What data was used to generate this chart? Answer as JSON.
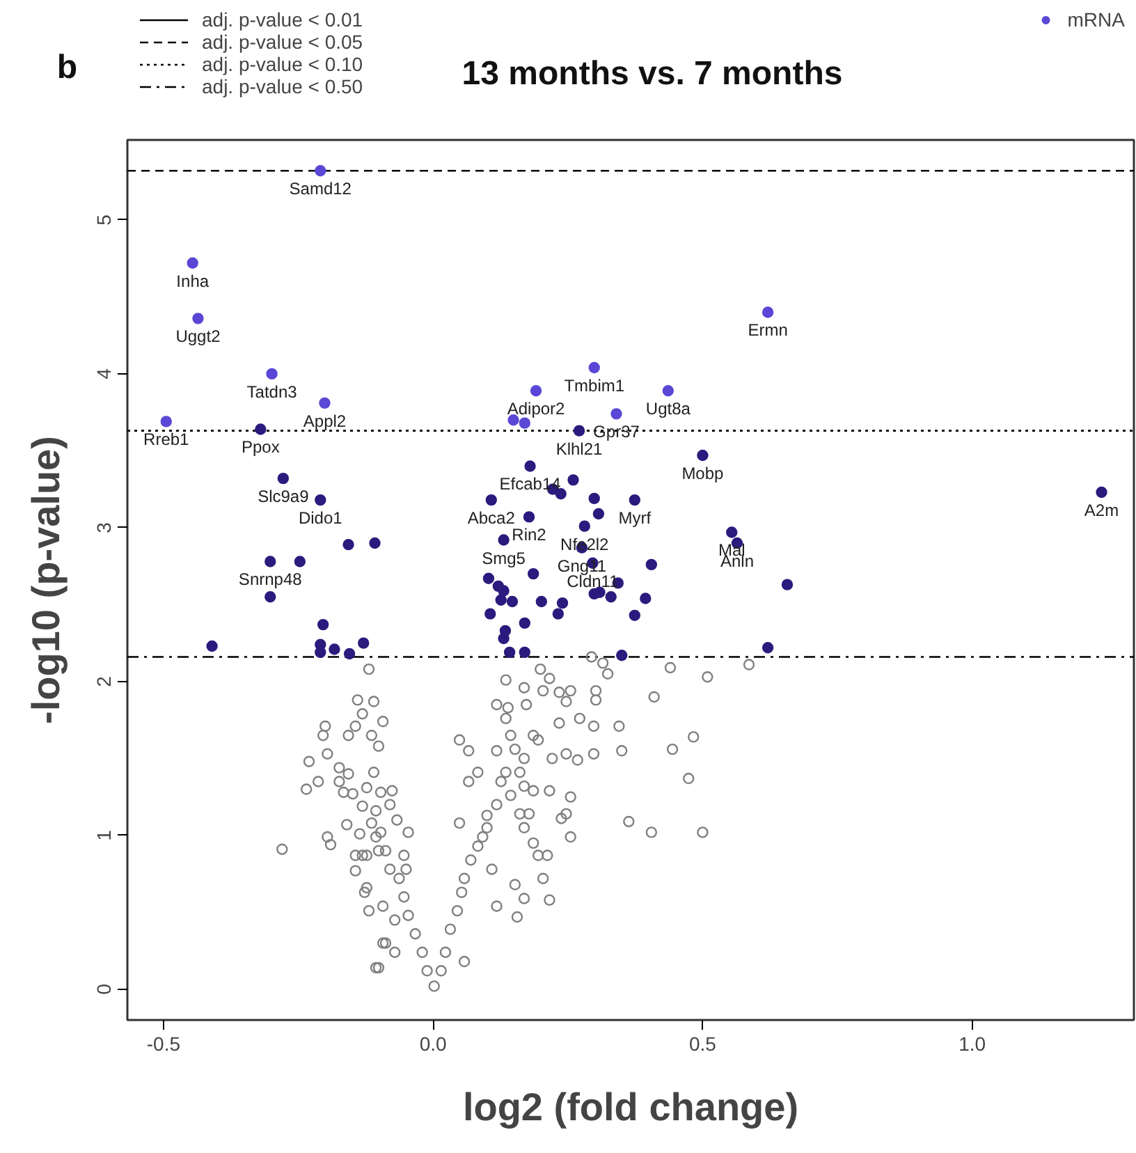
{
  "chart_data": {
    "type": "scatter",
    "title": "13 months vs. 7 months",
    "xlabel": "log2 (fold change)",
    "ylabel": "-log10 (p-value)",
    "xlim": [
      -0.567,
      1.3
    ],
    "ylim": [
      -0.2,
      5.52
    ],
    "xticks": [
      {
        "value": -0.5,
        "label": "-0.5"
      },
      {
        "value": 0,
        "label": "0.0"
      },
      {
        "value": 0.5,
        "label": "0.5"
      },
      {
        "value": 1.0,
        "label": "1.0"
      }
    ],
    "yticks": [
      0,
      1,
      2,
      3,
      4,
      5
    ],
    "grid": false,
    "marker": "circle",
    "legend": "top right",
    "series": [
      {
        "name": "mRNA",
        "color": "#5b47d6",
        "x": [
          -0.209,
          -0.446,
          -0.436,
          -0.299,
          -0.201,
          -0.495,
          0.191,
          0.299,
          0.436,
          0.34,
          0.149,
          0.17,
          0.621
        ],
        "values": [
          5.32,
          4.72,
          4.36,
          4.0,
          3.81,
          3.69,
          3.89,
          4.04,
          3.89,
          3.74,
          3.7,
          3.68,
          4.4
        ]
      },
      {
        "color": "#2b1b7e",
        "x": [
          -0.32,
          0.271,
          0.5,
          1.24,
          0.554,
          0.564,
          0.657,
          0.621,
          -0.278,
          -0.209,
          -0.157,
          -0.108,
          -0.302,
          -0.247,
          -0.302,
          -0.204,
          -0.41,
          -0.209,
          -0.209,
          -0.183,
          -0.155,
          -0.129,
          0.18,
          0.108,
          0.26,
          0.222,
          0.237,
          0.299,
          0.374,
          0.178,
          0.307,
          0.281,
          0.131,
          0.276,
          0.296,
          0.405,
          0.186,
          0.103,
          0.343,
          0.299,
          0.309,
          0.33,
          0.121,
          0.131,
          0.147,
          0.126,
          0.201,
          0.24,
          0.394,
          0.106,
          0.17,
          0.232,
          0.374,
          0.134,
          0.131,
          0.142,
          0.17,
          0.35
        ],
        "values": [
          3.64,
          3.63,
          3.47,
          3.23,
          2.97,
          2.9,
          2.63,
          2.22,
          3.32,
          3.18,
          2.89,
          2.9,
          2.78,
          2.78,
          2.55,
          2.37,
          2.23,
          2.24,
          2.19,
          2.21,
          2.18,
          2.25,
          3.4,
          3.18,
          3.31,
          3.25,
          3.22,
          3.19,
          3.18,
          3.07,
          3.09,
          3.01,
          2.92,
          2.87,
          2.77,
          2.76,
          2.7,
          2.67,
          2.64,
          2.57,
          2.58,
          2.55,
          2.62,
          2.59,
          2.52,
          2.53,
          2.52,
          2.51,
          2.54,
          2.44,
          2.38,
          2.44,
          2.43,
          2.33,
          2.28,
          2.19,
          2.19,
          2.17
        ]
      },
      {
        "color": "#808080",
        "x": [
          0.002,
          -0.011,
          0.015,
          -0.02,
          0.023,
          -0.033,
          0.032,
          -0.046,
          0.045,
          -0.054,
          0.053,
          -0.063,
          0.058,
          -0.08,
          0.07,
          -0.088,
          0.083,
          -0.106,
          0.092,
          -0.114,
          0.049,
          0.1,
          -0.131,
          0.109,
          -0.123,
          0.118,
          -0.088,
          -0.071,
          -0.101,
          0.058,
          0.156,
          0.216,
          0.204,
          0.169,
          0.152,
          0.195,
          0.212,
          0.186,
          0.169,
          0.178,
          0.161,
          0.1,
          0.118,
          0.144,
          0.169,
          0.186,
          0.216,
          0.255,
          0.247,
          0.255,
          0.238,
          0.186,
          0.195,
          0.144,
          0.152,
          0.118,
          0.066,
          0.049,
          0.083,
          0.066,
          0.126,
          0.135,
          0.161,
          0.169,
          0.221,
          0.247,
          0.268,
          0.272,
          0.234,
          0.247,
          0.234,
          0.255,
          0.204,
          0.216,
          0.199,
          0.169,
          0.173,
          0.135,
          0.118,
          0.139,
          0.135,
          0.302,
          0.302,
          0.324,
          0.315,
          0.294,
          0.298,
          0.298,
          0.345,
          0.35,
          0.41,
          0.44,
          0.509,
          0.586,
          0.483,
          0.444,
          0.474,
          0.363,
          0.405,
          0.5,
          -0.119,
          -0.14,
          -0.11,
          -0.131,
          -0.093,
          -0.2,
          -0.144,
          -0.157,
          -0.204,
          -0.114,
          -0.101,
          -0.196,
          -0.23,
          -0.174,
          -0.157,
          -0.213,
          -0.174,
          -0.235,
          -0.11,
          -0.123,
          -0.166,
          -0.149,
          -0.097,
          -0.076,
          -0.131,
          -0.106,
          -0.08,
          -0.067,
          -0.16,
          -0.136,
          -0.097,
          -0.046,
          -0.196,
          -0.19,
          -0.144,
          -0.123,
          -0.101,
          -0.054,
          -0.28,
          -0.144,
          -0.05,
          -0.127,
          -0.119,
          -0.093,
          -0.071,
          -0.106,
          -0.093
        ],
        "values": [
          0.02,
          0.12,
          0.12,
          0.24,
          0.24,
          0.36,
          0.39,
          0.48,
          0.51,
          0.6,
          0.63,
          0.72,
          0.72,
          0.78,
          0.84,
          0.9,
          0.93,
          0.99,
          0.99,
          1.08,
          1.08,
          1.05,
          0.87,
          0.78,
          0.66,
          0.54,
          0.3,
          0.24,
          0.14,
          0.18,
          0.47,
          0.58,
          0.72,
          0.59,
          0.68,
          0.87,
          0.87,
          0.95,
          1.05,
          1.14,
          1.14,
          1.13,
          1.2,
          1.26,
          1.32,
          1.29,
          1.29,
          1.25,
          1.14,
          0.99,
          1.11,
          1.65,
          1.62,
          1.65,
          1.56,
          1.55,
          1.55,
          1.62,
          1.41,
          1.35,
          1.35,
          1.41,
          1.41,
          1.5,
          1.5,
          1.53,
          1.49,
          1.76,
          1.73,
          1.87,
          1.93,
          1.94,
          1.94,
          2.02,
          2.08,
          1.96,
          1.85,
          2.01,
          1.85,
          1.83,
          1.76,
          1.94,
          1.88,
          2.05,
          2.12,
          2.16,
          1.71,
          1.53,
          1.71,
          1.55,
          1.9,
          2.09,
          2.03,
          2.11,
          1.64,
          1.56,
          1.37,
          1.09,
          1.02,
          1.02,
          2.08,
          1.88,
          1.87,
          1.79,
          1.74,
          1.71,
          1.71,
          1.65,
          1.65,
          1.65,
          1.58,
          1.53,
          1.48,
          1.44,
          1.4,
          1.35,
          1.35,
          1.3,
          1.41,
          1.31,
          1.28,
          1.27,
          1.28,
          1.29,
          1.19,
          1.16,
          1.2,
          1.1,
          1.07,
          1.01,
          1.02,
          1.02,
          0.99,
          0.94,
          0.87,
          0.87,
          0.9,
          0.87,
          0.91,
          0.77,
          0.78,
          0.63,
          0.51,
          0.54,
          0.45,
          0.14,
          0.3
        ]
      }
    ],
    "ref_lines": [
      {
        "axis": "y",
        "value": null,
        "label": "adj. p-value < 0.01",
        "line_style": "solid",
        "color": "#000000"
      },
      {
        "axis": "y",
        "value": 5.32,
        "label": "adj. p-value < 0.05",
        "line_style": "dashed",
        "color": "#000000"
      },
      {
        "axis": "y",
        "value": 3.63,
        "label": "adj. p-value < 0.10",
        "line_style": "dotted",
        "color": "#000000"
      },
      {
        "axis": "y",
        "value": 2.16,
        "label": "adj. p-value < 0.50",
        "line_style": "dashdot",
        "color": "#000000"
      }
    ],
    "annotations": [
      "b",
      {
        "text": "Samd12",
        "x": -0.209,
        "y": 5.32
      },
      {
        "text": "Inha",
        "x": -0.446,
        "y": 4.72
      },
      {
        "text": "Uggt2",
        "x": -0.436,
        "y": 4.36
      },
      {
        "text": "Tatdn3",
        "x": -0.299,
        "y": 4.0
      },
      {
        "text": "Appl2",
        "x": -0.201,
        "y": 3.81
      },
      {
        "text": "Rreb1",
        "x": -0.495,
        "y": 3.69
      },
      {
        "text": "Ppox",
        "x": -0.32,
        "y": 3.64
      },
      {
        "text": "Adipor2",
        "x": 0.191,
        "y": 3.89
      },
      {
        "text": "Tmbim1",
        "x": 0.299,
        "y": 4.04
      },
      {
        "text": "Ugt8a",
        "x": 0.436,
        "y": 3.89
      },
      {
        "text": "Gpr37",
        "x": 0.34,
        "y": 3.74
      },
      {
        "text": "Klhl21",
        "x": 0.271,
        "y": 3.63
      },
      {
        "text": "Ermn",
        "x": 0.621,
        "y": 4.4
      },
      {
        "text": "Mobp",
        "x": 0.5,
        "y": 3.47
      },
      {
        "text": "A2m",
        "x": 1.24,
        "y": 3.23
      },
      {
        "text": "Mal",
        "x": 0.554,
        "y": 2.97
      },
      {
        "text": "Anln",
        "x": 0.564,
        "y": 2.9
      },
      {
        "text": "Slc9a9",
        "x": -0.278,
        "y": 3.32
      },
      {
        "text": "Dido1",
        "x": -0.209,
        "y": 3.18
      },
      {
        "text": "Snrnp48",
        "x": -0.302,
        "y": 2.78
      },
      {
        "text": "Efcab14",
        "x": 0.18,
        "y": 3.4
      },
      {
        "text": "Abca2",
        "x": 0.108,
        "y": 3.18
      },
      {
        "text": "Rin2",
        "x": 0.178,
        "y": 3.07
      },
      {
        "text": "Smg5",
        "x": 0.131,
        "y": 2.92
      },
      {
        "text": "Nfe2l2",
        "x": 0.281,
        "y": 3.01
      },
      {
        "text": "Gng11",
        "x": 0.276,
        "y": 2.87
      },
      {
        "text": "Cldn11",
        "x": 0.296,
        "y": 2.77
      },
      {
        "text": "Myrf",
        "x": 0.374,
        "y": 3.18
      }
    ]
  }
}
